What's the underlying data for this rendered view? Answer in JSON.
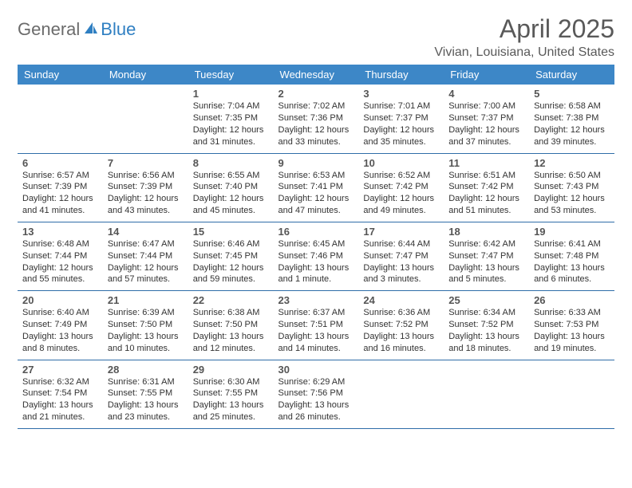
{
  "brand": {
    "part1": "General",
    "part2": "Blue"
  },
  "title": "April 2025",
  "location": "Vivian, Louisiana, United States",
  "colors": {
    "header_bg": "#3d87c7",
    "header_text": "#ffffff",
    "cell_border": "#2f6da8",
    "text": "#333333",
    "title_text": "#595959",
    "logo_gray": "#6b6b6b",
    "logo_blue": "#2f7fc2",
    "page_bg": "#ffffff"
  },
  "typography": {
    "title_fontsize": 32,
    "location_fontsize": 16,
    "dayheader_fontsize": 13,
    "daynum_fontsize": 13,
    "dayinfo_fontsize": 11
  },
  "layout": {
    "columns": 7,
    "rows": 5,
    "first_day_col_index": 2
  },
  "day_headers": [
    "Sunday",
    "Monday",
    "Tuesday",
    "Wednesday",
    "Thursday",
    "Friday",
    "Saturday"
  ],
  "days": [
    {
      "n": 1,
      "sunrise": "7:04 AM",
      "sunset": "7:35 PM",
      "daylight": "12 hours and 31 minutes."
    },
    {
      "n": 2,
      "sunrise": "7:02 AM",
      "sunset": "7:36 PM",
      "daylight": "12 hours and 33 minutes."
    },
    {
      "n": 3,
      "sunrise": "7:01 AM",
      "sunset": "7:37 PM",
      "daylight": "12 hours and 35 minutes."
    },
    {
      "n": 4,
      "sunrise": "7:00 AM",
      "sunset": "7:37 PM",
      "daylight": "12 hours and 37 minutes."
    },
    {
      "n": 5,
      "sunrise": "6:58 AM",
      "sunset": "7:38 PM",
      "daylight": "12 hours and 39 minutes."
    },
    {
      "n": 6,
      "sunrise": "6:57 AM",
      "sunset": "7:39 PM",
      "daylight": "12 hours and 41 minutes."
    },
    {
      "n": 7,
      "sunrise": "6:56 AM",
      "sunset": "7:39 PM",
      "daylight": "12 hours and 43 minutes."
    },
    {
      "n": 8,
      "sunrise": "6:55 AM",
      "sunset": "7:40 PM",
      "daylight": "12 hours and 45 minutes."
    },
    {
      "n": 9,
      "sunrise": "6:53 AM",
      "sunset": "7:41 PM",
      "daylight": "12 hours and 47 minutes."
    },
    {
      "n": 10,
      "sunrise": "6:52 AM",
      "sunset": "7:42 PM",
      "daylight": "12 hours and 49 minutes."
    },
    {
      "n": 11,
      "sunrise": "6:51 AM",
      "sunset": "7:42 PM",
      "daylight": "12 hours and 51 minutes."
    },
    {
      "n": 12,
      "sunrise": "6:50 AM",
      "sunset": "7:43 PM",
      "daylight": "12 hours and 53 minutes."
    },
    {
      "n": 13,
      "sunrise": "6:48 AM",
      "sunset": "7:44 PM",
      "daylight": "12 hours and 55 minutes."
    },
    {
      "n": 14,
      "sunrise": "6:47 AM",
      "sunset": "7:44 PM",
      "daylight": "12 hours and 57 minutes."
    },
    {
      "n": 15,
      "sunrise": "6:46 AM",
      "sunset": "7:45 PM",
      "daylight": "12 hours and 59 minutes."
    },
    {
      "n": 16,
      "sunrise": "6:45 AM",
      "sunset": "7:46 PM",
      "daylight": "13 hours and 1 minute."
    },
    {
      "n": 17,
      "sunrise": "6:44 AM",
      "sunset": "7:47 PM",
      "daylight": "13 hours and 3 minutes."
    },
    {
      "n": 18,
      "sunrise": "6:42 AM",
      "sunset": "7:47 PM",
      "daylight": "13 hours and 5 minutes."
    },
    {
      "n": 19,
      "sunrise": "6:41 AM",
      "sunset": "7:48 PM",
      "daylight": "13 hours and 6 minutes."
    },
    {
      "n": 20,
      "sunrise": "6:40 AM",
      "sunset": "7:49 PM",
      "daylight": "13 hours and 8 minutes."
    },
    {
      "n": 21,
      "sunrise": "6:39 AM",
      "sunset": "7:50 PM",
      "daylight": "13 hours and 10 minutes."
    },
    {
      "n": 22,
      "sunrise": "6:38 AM",
      "sunset": "7:50 PM",
      "daylight": "13 hours and 12 minutes."
    },
    {
      "n": 23,
      "sunrise": "6:37 AM",
      "sunset": "7:51 PM",
      "daylight": "13 hours and 14 minutes."
    },
    {
      "n": 24,
      "sunrise": "6:36 AM",
      "sunset": "7:52 PM",
      "daylight": "13 hours and 16 minutes."
    },
    {
      "n": 25,
      "sunrise": "6:34 AM",
      "sunset": "7:52 PM",
      "daylight": "13 hours and 18 minutes."
    },
    {
      "n": 26,
      "sunrise": "6:33 AM",
      "sunset": "7:53 PM",
      "daylight": "13 hours and 19 minutes."
    },
    {
      "n": 27,
      "sunrise": "6:32 AM",
      "sunset": "7:54 PM",
      "daylight": "13 hours and 21 minutes."
    },
    {
      "n": 28,
      "sunrise": "6:31 AM",
      "sunset": "7:55 PM",
      "daylight": "13 hours and 23 minutes."
    },
    {
      "n": 29,
      "sunrise": "6:30 AM",
      "sunset": "7:55 PM",
      "daylight": "13 hours and 25 minutes."
    },
    {
      "n": 30,
      "sunrise": "6:29 AM",
      "sunset": "7:56 PM",
      "daylight": "13 hours and 26 minutes."
    }
  ],
  "labels": {
    "sunrise": "Sunrise:",
    "sunset": "Sunset:",
    "daylight": "Daylight:"
  }
}
